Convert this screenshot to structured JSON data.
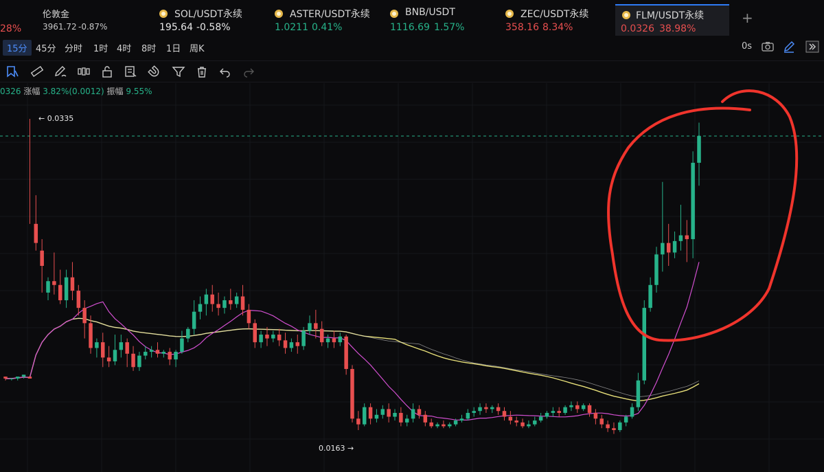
{
  "tabs": [
    {
      "name": "",
      "price": "28%",
      "change": "",
      "dir": "down"
    },
    {
      "name": "伦敦金",
      "price": "3961.72",
      "change": "-0.87%",
      "dir": "down"
    },
    {
      "name": "SOL/USDT永续",
      "price": "195.64",
      "change": "-0.58%",
      "dir": "down"
    },
    {
      "name": "ASTER/USDT永续",
      "price": "1.0211",
      "change": "0.41%",
      "dir": "up"
    },
    {
      "name": "BNB/USDT",
      "price": "1116.69",
      "change": "1.57%",
      "dir": "up"
    },
    {
      "name": "ZEC/USDT永续",
      "price": "358.16",
      "change": "8.34%",
      "dir": "down"
    },
    {
      "name": "FLM/USDT永续",
      "price": "0.0326",
      "change": "38.98%",
      "dir": "down"
    }
  ],
  "add_tab": "+",
  "timeframes": [
    "15分",
    "45分",
    "分时",
    "1时",
    "4时",
    "8时",
    "1日",
    "周K"
  ],
  "selected_timeframe": "15分",
  "countdown": "0s",
  "toolbar_icons": [
    "bookmark-icon",
    "ruler-icon",
    "pen-icon",
    "candles-icon",
    "lock-icon",
    "note-icon",
    "magnet-icon",
    "filter-icon",
    "trash-icon",
    "undo-icon",
    "redo-icon"
  ],
  "info": {
    "price": "0326",
    "change_label": "涨幅",
    "change_value": "3.82%(0.0012)",
    "amp_label": "振幅",
    "amp_value": "9.55%"
  },
  "chart_data": {
    "type": "candlestick",
    "symbol": "FLM/USDT永续",
    "interval": "15分",
    "high_label": "0.0335",
    "low_label": "0.0163",
    "current_price": 0.0326,
    "colors": {
      "up": "#27b38a",
      "down": "#e84f4f",
      "ma_fast": "#d24fd0",
      "ma_slow": "#e8e07a",
      "annotation": "#f0342c"
    },
    "candles": [
      [
        0.02,
        0.02,
        0.0199,
        0.0198
      ],
      [
        0.0199,
        0.0199,
        0.0199,
        0.0198
      ],
      [
        0.0199,
        0.02,
        0.02,
        0.0198
      ],
      [
        0.02,
        0.0201,
        0.0201,
        0.0199
      ],
      [
        0.02,
        0.0335,
        0.0199,
        0.028
      ],
      [
        0.028,
        0.0295,
        0.027,
        0.0266
      ],
      [
        0.0266,
        0.0272,
        0.0258,
        0.0244
      ],
      [
        0.0244,
        0.0252,
        0.025,
        0.024
      ],
      [
        0.025,
        0.0265,
        0.0248,
        0.0243
      ],
      [
        0.0248,
        0.0256,
        0.024,
        0.0238
      ],
      [
        0.024,
        0.0256,
        0.0252,
        0.0236
      ],
      [
        0.0252,
        0.026,
        0.0245,
        0.024
      ],
      [
        0.0245,
        0.0248,
        0.0236,
        0.0232
      ],
      [
        0.0236,
        0.024,
        0.0228,
        0.022
      ],
      [
        0.0228,
        0.0232,
        0.0215,
        0.0212
      ],
      [
        0.0215,
        0.022,
        0.0218,
        0.021
      ],
      [
        0.0218,
        0.0223,
        0.021,
        0.0205
      ],
      [
        0.021,
        0.0216,
        0.0208,
        0.0205
      ],
      [
        0.0208,
        0.0222,
        0.0214,
        0.0206
      ],
      [
        0.0214,
        0.0222,
        0.0218,
        0.021
      ],
      [
        0.0218,
        0.022,
        0.0212,
        0.0205
      ],
      [
        0.0212,
        0.0216,
        0.0205,
        0.0203
      ],
      [
        0.0205,
        0.0213,
        0.0211,
        0.0203
      ],
      [
        0.0211,
        0.0216,
        0.0213,
        0.0209
      ],
      [
        0.0213,
        0.0216,
        0.0214,
        0.021
      ],
      [
        0.0214,
        0.0218,
        0.0212,
        0.021
      ],
      [
        0.0212,
        0.0214,
        0.0213,
        0.021
      ],
      [
        0.0213,
        0.0215,
        0.0209,
        0.0206
      ],
      [
        0.0209,
        0.0214,
        0.0213,
        0.0205
      ],
      [
        0.0213,
        0.0224,
        0.022,
        0.0212
      ],
      [
        0.022,
        0.0226,
        0.0225,
        0.0218
      ],
      [
        0.0225,
        0.024,
        0.0234,
        0.0222
      ],
      [
        0.0234,
        0.0242,
        0.0238,
        0.023
      ],
      [
        0.0238,
        0.0246,
        0.0243,
        0.0232
      ],
      [
        0.0243,
        0.0248,
        0.0238,
        0.0234
      ],
      [
        0.0238,
        0.0244,
        0.0236,
        0.0232
      ],
      [
        0.0236,
        0.0242,
        0.024,
        0.0233
      ],
      [
        0.024,
        0.0246,
        0.0238,
        0.0235
      ],
      [
        0.0238,
        0.0244,
        0.0242,
        0.0236
      ],
      [
        0.0242,
        0.0248,
        0.0235,
        0.0232
      ],
      [
        0.0235,
        0.0238,
        0.0228,
        0.0225
      ],
      [
        0.0228,
        0.023,
        0.0218,
        0.0215
      ],
      [
        0.0218,
        0.0224,
        0.0222,
        0.0215
      ],
      [
        0.0222,
        0.0226,
        0.022,
        0.0216
      ],
      [
        0.022,
        0.0224,
        0.0222,
        0.0218
      ],
      [
        0.0222,
        0.0225,
        0.0219,
        0.0216
      ],
      [
        0.0219,
        0.0223,
        0.0215,
        0.0212
      ],
      [
        0.0215,
        0.022,
        0.0218,
        0.0213
      ],
      [
        0.0218,
        0.0222,
        0.0216,
        0.0212
      ],
      [
        0.0216,
        0.0226,
        0.0224,
        0.0214
      ],
      [
        0.0224,
        0.0232,
        0.0228,
        0.0222
      ],
      [
        0.0228,
        0.0235,
        0.0225,
        0.022
      ],
      [
        0.0225,
        0.0229,
        0.0218,
        0.0216
      ],
      [
        0.0218,
        0.0222,
        0.022,
        0.0215
      ],
      [
        0.022,
        0.0224,
        0.0218,
        0.0215
      ],
      [
        0.0218,
        0.0223,
        0.0221,
        0.0216
      ],
      [
        0.0221,
        0.0222,
        0.0204,
        0.0201
      ],
      [
        0.0204,
        0.0206,
        0.0178,
        0.0176
      ],
      [
        0.0178,
        0.0182,
        0.0175,
        0.0172
      ],
      [
        0.0175,
        0.0186,
        0.0184,
        0.0174
      ],
      [
        0.0184,
        0.0186,
        0.0178,
        0.0175
      ],
      [
        0.0178,
        0.0183,
        0.018,
        0.0176
      ],
      [
        0.018,
        0.0185,
        0.0183,
        0.0178
      ],
      [
        0.0183,
        0.0186,
        0.0179,
        0.0176
      ],
      [
        0.0179,
        0.0183,
        0.0181,
        0.0177
      ],
      [
        0.0181,
        0.0184,
        0.0176,
        0.0174
      ],
      [
        0.0176,
        0.018,
        0.0178,
        0.0174
      ],
      [
        0.0178,
        0.0186,
        0.0183,
        0.0176
      ],
      [
        0.0183,
        0.0185,
        0.018,
        0.0178
      ],
      [
        0.018,
        0.0182,
        0.0176,
        0.0174
      ],
      [
        0.0176,
        0.0178,
        0.0174,
        0.0173
      ],
      [
        0.0174,
        0.0176,
        0.0175,
        0.0173
      ],
      [
        0.0175,
        0.0177,
        0.0174,
        0.0173
      ],
      [
        0.0174,
        0.0176,
        0.0175,
        0.0173
      ],
      [
        0.0175,
        0.0178,
        0.0177,
        0.0174
      ],
      [
        0.0177,
        0.018,
        0.0178,
        0.0176
      ],
      [
        0.0178,
        0.0183,
        0.0181,
        0.0177
      ],
      [
        0.0181,
        0.0184,
        0.0182,
        0.0179
      ],
      [
        0.0182,
        0.0186,
        0.0184,
        0.018
      ],
      [
        0.0184,
        0.0186,
        0.0183,
        0.0181
      ],
      [
        0.0183,
        0.0185,
        0.0184,
        0.0181
      ],
      [
        0.0184,
        0.0186,
        0.0182,
        0.018
      ],
      [
        0.0182,
        0.0184,
        0.0179,
        0.0177
      ],
      [
        0.0179,
        0.0182,
        0.0177,
        0.0175
      ],
      [
        0.0177,
        0.0179,
        0.0176,
        0.0174
      ],
      [
        0.0176,
        0.0178,
        0.0174,
        0.0173
      ],
      [
        0.0174,
        0.0177,
        0.0175,
        0.0173
      ],
      [
        0.0175,
        0.0179,
        0.0177,
        0.0174
      ],
      [
        0.0177,
        0.0181,
        0.0179,
        0.0176
      ],
      [
        0.0179,
        0.0182,
        0.0181,
        0.0178
      ],
      [
        0.0181,
        0.0184,
        0.0182,
        0.0179
      ],
      [
        0.0182,
        0.0184,
        0.0181,
        0.0179
      ],
      [
        0.0181,
        0.0185,
        0.0184,
        0.018
      ],
      [
        0.0184,
        0.0187,
        0.0185,
        0.0182
      ],
      [
        0.0185,
        0.0187,
        0.0183,
        0.0181
      ],
      [
        0.0183,
        0.0186,
        0.0185,
        0.0182
      ],
      [
        0.0185,
        0.0186,
        0.0181,
        0.0179
      ],
      [
        0.0181,
        0.0183,
        0.0178,
        0.0175
      ],
      [
        0.0178,
        0.018,
        0.0175,
        0.0173
      ],
      [
        0.0175,
        0.0177,
        0.0173,
        0.0171
      ],
      [
        0.0173,
        0.0176,
        0.0172,
        0.017
      ],
      [
        0.0172,
        0.0177,
        0.0176,
        0.0171
      ],
      [
        0.0176,
        0.018,
        0.0179,
        0.0174
      ],
      [
        0.0179,
        0.0186,
        0.0184,
        0.0178
      ],
      [
        0.0184,
        0.0202,
        0.0198,
        0.0182
      ],
      [
        0.0198,
        0.024,
        0.0236,
        0.0196
      ],
      [
        0.0236,
        0.0252,
        0.0248,
        0.0234
      ],
      [
        0.0248,
        0.0268,
        0.0264,
        0.0244
      ],
      [
        0.0264,
        0.0302,
        0.027,
        0.0255
      ],
      [
        0.027,
        0.028,
        0.0265,
        0.0258
      ],
      [
        0.0265,
        0.0276,
        0.0271,
        0.0262
      ],
      [
        0.0271,
        0.029,
        0.0274,
        0.0266
      ],
      [
        0.0274,
        0.0282,
        0.0272,
        0.026
      ],
      [
        0.0272,
        0.0318,
        0.0312,
        0.0262
      ],
      [
        0.0312,
        0.0333,
        0.0326,
        0.03
      ]
    ]
  }
}
